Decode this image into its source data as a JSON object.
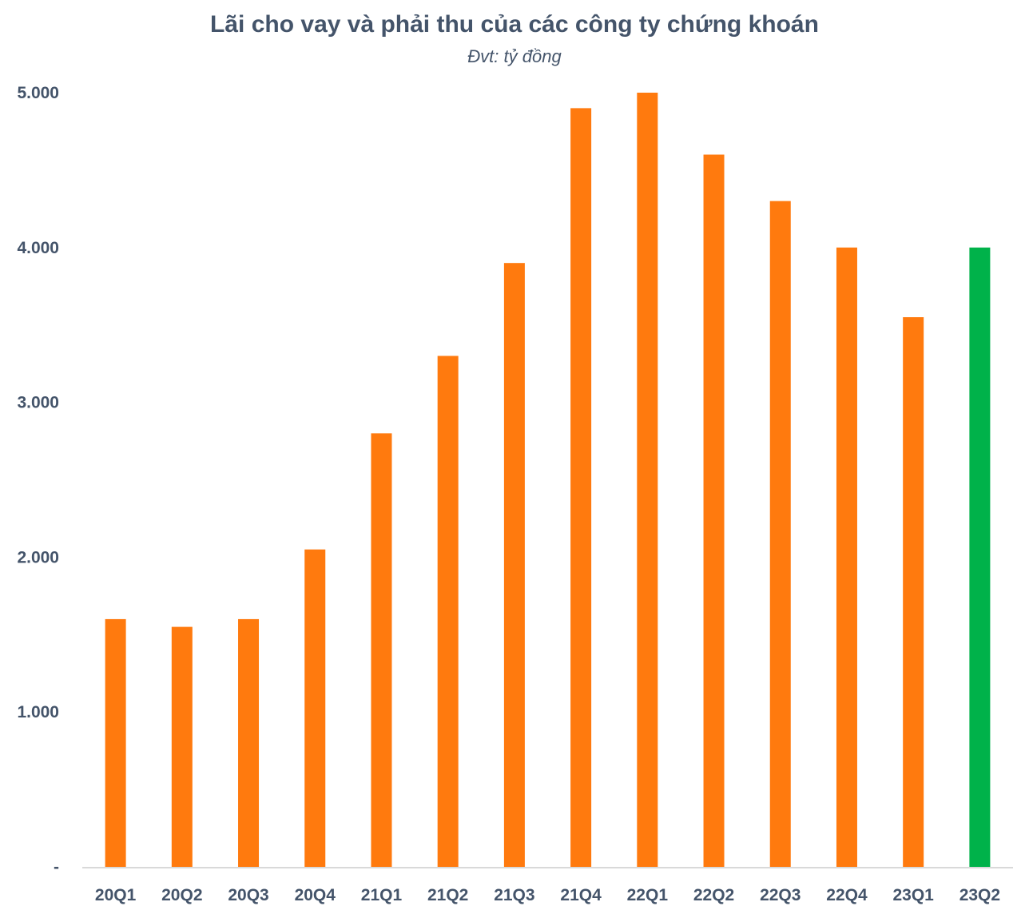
{
  "chart_data": {
    "type": "bar",
    "title": "Lãi cho vay và phải thu của các công ty chứng khoán",
    "subtitle": "Đvt: tỷ đồng",
    "xlabel": "",
    "ylabel": "",
    "categories": [
      "20Q1",
      "20Q2",
      "20Q3",
      "20Q4",
      "21Q1",
      "21Q2",
      "21Q3",
      "21Q4",
      "22Q1",
      "22Q2",
      "22Q3",
      "22Q4",
      "23Q1",
      "23Q2"
    ],
    "values": [
      1600,
      1550,
      1600,
      2050,
      2800,
      3300,
      3900,
      4900,
      5000,
      4600,
      4300,
      4000,
      3550,
      4000
    ],
    "bar_colors": [
      "#ff7a0e",
      "#ff7a0e",
      "#ff7a0e",
      "#ff7a0e",
      "#ff7a0e",
      "#ff7a0e",
      "#ff7a0e",
      "#ff7a0e",
      "#ff7a0e",
      "#ff7a0e",
      "#ff7a0e",
      "#ff7a0e",
      "#ff7a0e",
      "#00b24a"
    ],
    "ylim": [
      0,
      5000
    ],
    "yticks": [
      0,
      1000,
      2000,
      3000,
      4000,
      5000
    ],
    "ytick_labels": [
      "-",
      "1.000",
      "2.000",
      "3.000",
      "4.000",
      "5.000"
    ],
    "grid": false,
    "legend": "none",
    "axis_color": "#d9d9d9",
    "text_color": "#44546a"
  }
}
